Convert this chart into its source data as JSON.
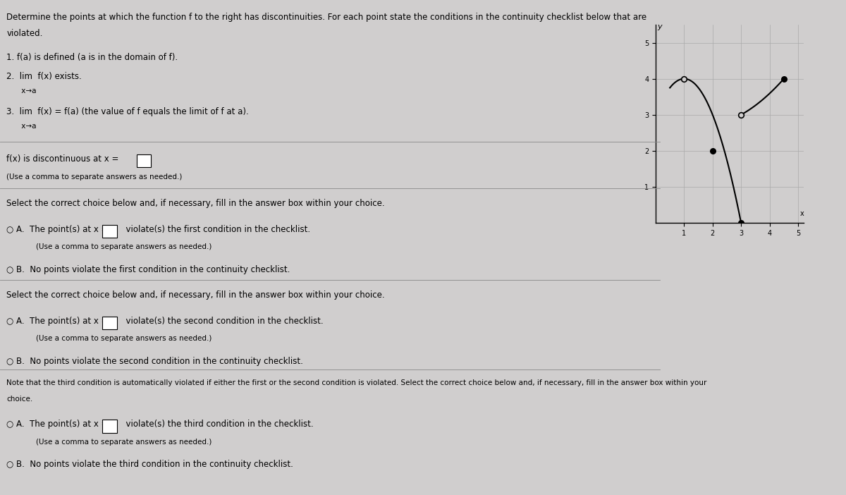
{
  "background_color": "#d0cece",
  "text_color": "#000000",
  "title_line1": "Determine the points at which the function f to the right has discontinuities. For each point state the conditions in the continuity checklist below that are",
  "title_line2": "violated.",
  "checklist": [
    "1. f(a) is defined (a is in the domain of f).",
    "2.  lim  f(x) exists.",
    "     x→a",
    "3.  lim  f(x) = f(a) (the value of f equals the limit of f at a).",
    "     x→a"
  ],
  "discontinuous_text": "f(x) is discontinuous at x =",
  "note_use_comma1": "(Use a comma to separate answers as needed.)",
  "select_correct1": "Select the correct choice below and, if necessary, fill in the answer box within your choice.",
  "optionA1_prefix": "○ A.  The point(s) at x = ",
  "optionA1_suffix": "  violate(s) the first condition in the checklist.",
  "optionA1_sub": "(Use a comma to separate answers as needed.)",
  "optionB1": "○ B.  No points violate the first condition in the continuity checklist.",
  "select_correct2": "Select the correct choice below and, if necessary, fill in the answer box within your choice.",
  "optionA2_prefix": "○ A.  The point(s) at x = ",
  "optionA2_suffix": "  violate(s) the second condition in the checklist.",
  "optionA2_sub": "(Use a comma to separate answers as needed.)",
  "optionB2": "○ B.  No points violate the second condition in the continuity checklist.",
  "note_third": "Note that the third condition is automatically violated if either the first or the second condition is violated. Select the correct choice below and, if necessary, fill in the answer box within your",
  "note_third2": "choice.",
  "optionA3_prefix": "○ A.  The point(s) at x = ",
  "optionA3_suffix": "  violate(s) the third condition in the checklist.",
  "optionA3_sub": "(Use a comma to separate answers as needed.)",
  "optionB3": "○ B.  No points violate the third condition in the continuity checklist.",
  "graph": {
    "xlim": [
      0,
      5.2
    ],
    "ylim": [
      0,
      5.5
    ],
    "xlabel": "x",
    "ylabel": "y",
    "xticks": [
      1,
      2,
      3,
      4,
      5
    ],
    "yticks": [
      1,
      2,
      3,
      4,
      5
    ],
    "curve_color": "#000000",
    "open_dot_color": "#d0cece",
    "solid_dot_color": "#000000",
    "grid_color": "#aaaaaa",
    "dot_open_1": [
      1.0,
      4.0
    ],
    "dot_open_2": [
      3.0,
      3.0
    ],
    "dot_solid_1": [
      2.0,
      2.0
    ],
    "dot_solid_2": [
      3.0,
      0.0
    ],
    "dot_solid_3": [
      4.5,
      4.0
    ]
  }
}
